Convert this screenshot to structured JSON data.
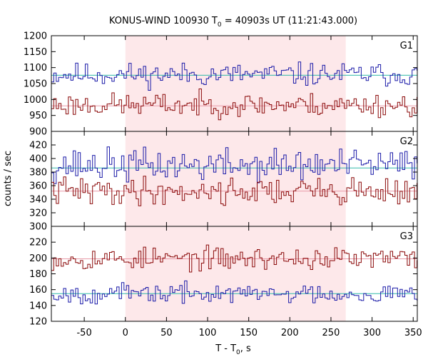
{
  "chart_data": {
    "type": "line",
    "title": "KONUS-WIND 100930 T",
    "title_sub": "0",
    "title_rest": " = 40903s UT (11:21:43.000)",
    "xlabel": "T - T",
    "xlabel_sub": "0",
    "xlabel_rest": ", s",
    "ylabel": "counts / sec",
    "xlim": [
      -90,
      355
    ],
    "x_ticks": [
      -50,
      0,
      50,
      100,
      150,
      200,
      250,
      300,
      350
    ],
    "x_tick_labels": [
      "-50",
      "0",
      "50",
      "100",
      "150",
      "200",
      "250",
      "300",
      "350"
    ],
    "highlight_interval": [
      0,
      268
    ],
    "colors": {
      "upper": "#1a1aa8",
      "lower": "#8b0a0a",
      "fit_upper": "#33bbaa",
      "fit_lower": "#e89aa8",
      "highlight": "#fde8ea"
    },
    "panels": [
      {
        "label": "G1",
        "ylim": [
          900,
          1200
        ],
        "y_ticks": [
          900,
          950,
          1000,
          1050,
          1100,
          1150,
          1200
        ],
        "y_tick_labels": [
          "900",
          "950",
          "1000",
          "1050",
          "1100",
          "1150",
          "1200"
        ],
        "series": [
          {
            "role": "upper",
            "mean": 1078,
            "noise": 18,
            "seed": 11,
            "fit": 1076
          },
          {
            "role": "lower",
            "mean": 983,
            "noise": 18,
            "seed": 23,
            "fit": 980
          }
        ]
      },
      {
        "label": "G2",
        "ylim": [
          300,
          440
        ],
        "y_ticks": [
          300,
          320,
          340,
          360,
          380,
          400,
          420
        ],
        "y_tick_labels": [
          "300",
          "320",
          "340",
          "360",
          "380",
          "400",
          "420"
        ],
        "series": [
          {
            "role": "upper",
            "mean": 390,
            "noise": 12,
            "seed": 37,
            "fit": 386
          },
          {
            "role": "lower",
            "mean": 352,
            "noise": 10,
            "seed": 41,
            "fit": 352
          }
        ]
      },
      {
        "label": "G3",
        "ylim": [
          120,
          240
        ],
        "y_ticks": [
          120,
          140,
          160,
          180,
          200,
          220
        ],
        "y_tick_labels": [
          "120",
          "140",
          "160",
          "180",
          "200",
          "220"
        ],
        "series": [
          {
            "role": "lower",
            "mean": 199,
            "noise": 7,
            "seed": 53,
            "fit": 199
          },
          {
            "role": "upper",
            "mean": 155,
            "noise": 6,
            "seed": 67,
            "fit": 155
          }
        ]
      }
    ]
  }
}
